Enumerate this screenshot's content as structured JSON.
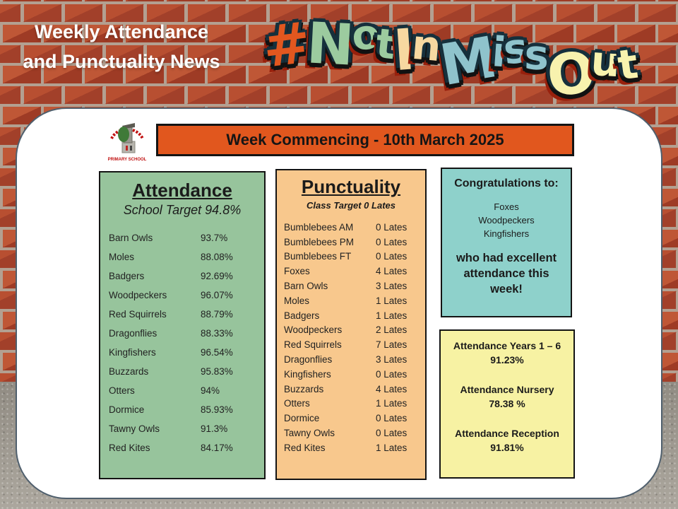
{
  "header": {
    "title_line1": "Weekly Attendance",
    "title_line2": "and Punctuality News"
  },
  "logo": {
    "segments": [
      {
        "text": "#",
        "color": "#e2571f"
      },
      {
        "text": "Not",
        "color": "#9ccb9f"
      },
      {
        "text": "In",
        "color": "#f7d8a0"
      },
      {
        "text": "Miss",
        "color": "#8fc3cc"
      },
      {
        "text": "Out",
        "color": "#f8f2ae"
      }
    ]
  },
  "school_logo": {
    "caption": "PRIMARY SCHOOL"
  },
  "banner": {
    "text": "Week Commencing - 10th March 2025"
  },
  "attendance": {
    "title": "Attendance",
    "subtitle": "School Target 94.8%",
    "rows": [
      {
        "name": "Barn Owls",
        "value": "93.7%"
      },
      {
        "name": "Moles",
        "value": "88.08%"
      },
      {
        "name": "Badgers",
        "value": "92.69%"
      },
      {
        "name": "Woodpeckers",
        "value": "96.07%"
      },
      {
        "name": "Red Squirrels",
        "value": "88.79%"
      },
      {
        "name": "Dragonflies",
        "value": "88.33%"
      },
      {
        "name": "Kingfishers",
        "value": "96.54%"
      },
      {
        "name": "Buzzards",
        "value": "95.83%"
      },
      {
        "name": "Otters",
        "value": "94%"
      },
      {
        "name": "Dormice",
        "value": "85.93%"
      },
      {
        "name": "Tawny Owls",
        "value": "91.3%"
      },
      {
        "name": "Red Kites",
        "value": "84.17%"
      }
    ]
  },
  "punctuality": {
    "title": "Punctuality",
    "subtitle": "Class Target 0 Lates",
    "rows": [
      {
        "name": "Bumblebees AM",
        "value": "0 Lates"
      },
      {
        "name": "Bumblebees PM",
        "value": "0 Lates"
      },
      {
        "name": "Bumblebees FT",
        "value": "0 Lates"
      },
      {
        "name": "Foxes",
        "value": "4 Lates"
      },
      {
        "name": "Barn Owls",
        "value": "3 Lates"
      },
      {
        "name": "Moles",
        "value": "1 Lates"
      },
      {
        "name": "Badgers",
        "value": "1 Lates"
      },
      {
        "name": "Woodpeckers",
        "value": "2 Lates"
      },
      {
        "name": "Red Squirrels",
        "value": "7 Lates"
      },
      {
        "name": "Dragonflies",
        "value": "3 Lates"
      },
      {
        "name": "Kingfishers",
        "value": "0 Lates"
      },
      {
        "name": "Buzzards",
        "value": "4 Lates"
      },
      {
        "name": "Otters",
        "value": "1 Lates"
      },
      {
        "name": "Dormice",
        "value": "0 Lates"
      },
      {
        "name": "Tawny Owls",
        "value": "0 Lates"
      },
      {
        "name": "Red Kites",
        "value": "1 Lates"
      }
    ]
  },
  "congratulations": {
    "heading": "Congratulations to:",
    "names": [
      "Foxes",
      "Woodpeckers",
      "Kingfishers"
    ],
    "message": "who had excellent attendance this week!"
  },
  "totals": {
    "items": [
      {
        "label": "Attendance Years 1 – 6",
        "value": "91.23%"
      },
      {
        "label": "Attendance Nursery",
        "value": "78.38 %"
      },
      {
        "label": "Attendance Reception",
        "value": "91.81%"
      }
    ]
  },
  "colors": {
    "banner_bg": "#e1571e",
    "attendance_bg": "#97c49c",
    "punctuality_bg": "#f8c88d",
    "congrats_bg": "#8ed1cb",
    "totals_bg": "#f7f2a3"
  }
}
